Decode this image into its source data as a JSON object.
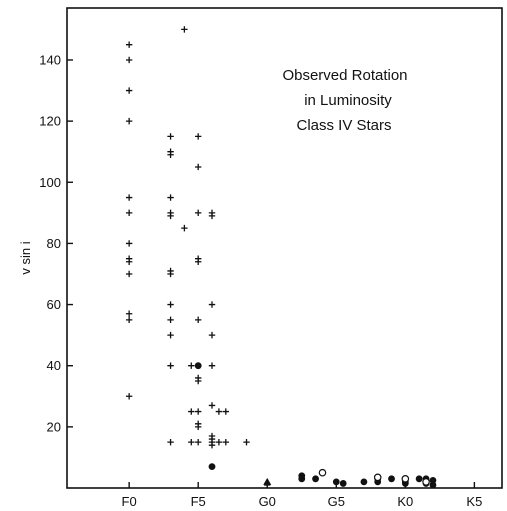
{
  "chart_data": {
    "type": "scatter",
    "title_lines": [
      "Observed Rotation",
      "in Luminosity",
      "Class IV Stars"
    ],
    "xlabel": "",
    "ylabel": "v sin i",
    "x_ticks": [
      {
        "pos": 0,
        "label": "F0"
      },
      {
        "pos": 5,
        "label": "F5"
      },
      {
        "pos": 10,
        "label": "G0"
      },
      {
        "pos": 15,
        "label": "G5"
      },
      {
        "pos": 20,
        "label": "K0"
      },
      {
        "pos": 25,
        "label": "K5"
      }
    ],
    "y_ticks": [
      20,
      40,
      60,
      80,
      100,
      120,
      140
    ],
    "xlim": [
      -4.5,
      27
    ],
    "ylim": [
      0,
      157
    ],
    "grid": false,
    "series": [
      {
        "marker": "plus",
        "points": [
          [
            0,
            145
          ],
          [
            0,
            140
          ],
          [
            0,
            130
          ],
          [
            0,
            120
          ],
          [
            0,
            95
          ],
          [
            0,
            90
          ],
          [
            0,
            80
          ],
          [
            0,
            75
          ],
          [
            0,
            74
          ],
          [
            0,
            70
          ],
          [
            0,
            57
          ],
          [
            0,
            55
          ],
          [
            0,
            30
          ],
          [
            3,
            115
          ],
          [
            3,
            110
          ],
          [
            3,
            109
          ],
          [
            3,
            95
          ],
          [
            3,
            90
          ],
          [
            3,
            89
          ],
          [
            3,
            71
          ],
          [
            3,
            70
          ],
          [
            3,
            60
          ],
          [
            3,
            55
          ],
          [
            3,
            50
          ],
          [
            3,
            40
          ],
          [
            3,
            15
          ],
          [
            4,
            150
          ],
          [
            4,
            85
          ],
          [
            5,
            115
          ],
          [
            5,
            105
          ],
          [
            5,
            90
          ],
          [
            5,
            75
          ],
          [
            5,
            74
          ],
          [
            5,
            55
          ],
          [
            5,
            40
          ],
          [
            5,
            36
          ],
          [
            5,
            35
          ],
          [
            5,
            25
          ],
          [
            5,
            21
          ],
          [
            5,
            20
          ],
          [
            5,
            15
          ],
          [
            4.5,
            40
          ],
          [
            4.5,
            25
          ],
          [
            4.5,
            15
          ],
          [
            6,
            90
          ],
          [
            6,
            89
          ],
          [
            6,
            60
          ],
          [
            6,
            50
          ],
          [
            6,
            40
          ],
          [
            6,
            27
          ],
          [
            6,
            17
          ],
          [
            6,
            16
          ],
          [
            6,
            15
          ],
          [
            6,
            14
          ],
          [
            6.5,
            25
          ],
          [
            6.5,
            15
          ],
          [
            7,
            25
          ],
          [
            7,
            15
          ],
          [
            8.5,
            15
          ],
          [
            10,
            1
          ]
        ]
      },
      {
        "marker": "filled-circle",
        "points": [
          [
            5,
            40
          ],
          [
            6,
            7
          ],
          [
            12.5,
            4
          ],
          [
            12.5,
            3
          ],
          [
            13.5,
            3
          ],
          [
            15,
            2
          ],
          [
            15.5,
            1.5
          ],
          [
            17,
            2
          ],
          [
            18,
            3
          ],
          [
            18,
            2
          ],
          [
            19,
            3
          ],
          [
            20,
            2
          ],
          [
            20,
            1.5
          ],
          [
            21,
            3
          ],
          [
            21.5,
            3
          ],
          [
            21.5,
            1.5
          ],
          [
            22,
            1
          ],
          [
            22,
            2.5
          ]
        ]
      },
      {
        "marker": "open-circle",
        "points": [
          [
            14,
            5
          ],
          [
            18,
            3.5
          ],
          [
            20,
            3
          ],
          [
            21.5,
            2
          ]
        ]
      },
      {
        "marker": "filled-triangle",
        "points": [
          [
            10,
            2
          ]
        ]
      }
    ]
  }
}
